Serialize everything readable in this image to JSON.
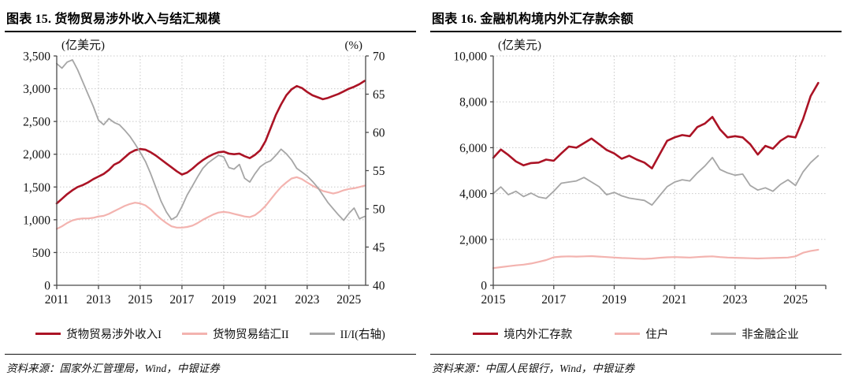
{
  "colors": {
    "dark_red": "#AB1325",
    "pink": "#F3B3AF",
    "gray": "#A6A6A6",
    "axis": "#4a4a4a",
    "grid": "#c9c9c9"
  },
  "chart_data": [
    {
      "type": "line",
      "title": "图表 15. 货物贸易涉外收入与结汇规模",
      "unit_left": "(亿美元)",
      "unit_right": "(%)",
      "x_start": 2011.0,
      "x_step": 0.25,
      "xlim": [
        2011,
        2025.8
      ],
      "x_ticks": [
        2011,
        2013,
        2015,
        2017,
        2019,
        2021,
        2023,
        2025
      ],
      "ylim_left": [
        0,
        3500
      ],
      "y_ticks_left": [
        0,
        500,
        1000,
        1500,
        2000,
        2500,
        3000,
        3500
      ],
      "ylim_right": [
        40,
        70
      ],
      "y_ticks_right": [
        40,
        45,
        50,
        55,
        60,
        65,
        70
      ],
      "grid": "dotted",
      "legend_position": "bottom",
      "series": [
        {
          "name": "货物贸易涉外收入I",
          "axis": "left",
          "color_key": "dark_red",
          "width": 2.6,
          "values": [
            1250,
            1320,
            1390,
            1450,
            1500,
            1530,
            1570,
            1620,
            1660,
            1700,
            1760,
            1840,
            1880,
            1950,
            2020,
            2060,
            2080,
            2070,
            2030,
            1980,
            1920,
            1860,
            1800,
            1740,
            1690,
            1720,
            1780,
            1850,
            1910,
            1960,
            2000,
            2030,
            2040,
            2010,
            2000,
            2010,
            1970,
            1940,
            1990,
            2060,
            2200,
            2400,
            2600,
            2760,
            2900,
            2990,
            3040,
            3010,
            2950,
            2900,
            2870,
            2840,
            2860,
            2890,
            2920,
            2960,
            3000,
            3030,
            3070,
            3120
          ]
        },
        {
          "name": "货物贸易结汇II",
          "axis": "left",
          "color_key": "pink",
          "width": 2.2,
          "values": [
            860,
            900,
            950,
            990,
            1010,
            1020,
            1020,
            1030,
            1050,
            1060,
            1090,
            1130,
            1170,
            1210,
            1240,
            1260,
            1250,
            1220,
            1160,
            1080,
            1010,
            950,
            900,
            880,
            880,
            890,
            910,
            950,
            1000,
            1040,
            1080,
            1110,
            1120,
            1110,
            1090,
            1070,
            1050,
            1040,
            1070,
            1130,
            1210,
            1310,
            1410,
            1500,
            1570,
            1630,
            1650,
            1620,
            1570,
            1520,
            1480,
            1440,
            1420,
            1400,
            1420,
            1450,
            1470,
            1480,
            1500,
            1520
          ]
        },
        {
          "name": "II/I(右轴)",
          "axis": "right",
          "color_key": "gray",
          "width": 1.8,
          "values": [
            69.0,
            68.4,
            69.2,
            69.5,
            68.2,
            66.6,
            65.0,
            63.4,
            61.6,
            61.0,
            61.8,
            61.3,
            61.0,
            60.3,
            59.5,
            58.5,
            57.4,
            56.2,
            54.6,
            52.8,
            51.0,
            49.6,
            48.6,
            49.0,
            50.3,
            51.8,
            53.0,
            54.2,
            55.3,
            56.0,
            56.5,
            57.0,
            56.8,
            55.4,
            55.2,
            55.8,
            54.0,
            53.5,
            54.6,
            55.5,
            56.0,
            56.3,
            57.0,
            57.8,
            57.2,
            56.4,
            55.3,
            54.8,
            54.3,
            53.6,
            52.8,
            51.8,
            50.8,
            50.0,
            49.2,
            48.5,
            49.4,
            50.1,
            48.7,
            49.0
          ]
        }
      ],
      "source": "资料来源：国家外汇管理局，Wind，中银证券"
    },
    {
      "type": "line",
      "title": "图表 16. 金融机构境内外汇存款余额",
      "unit_left": "(亿美元)",
      "x_start": 2015.0,
      "x_step": 0.25,
      "xlim": [
        2015,
        2026
      ],
      "x_ticks": [
        2015,
        2017,
        2019,
        2021,
        2023,
        2025
      ],
      "ylim_left": [
        0,
        10000
      ],
      "y_ticks_left": [
        0,
        2000,
        4000,
        6000,
        8000,
        10000
      ],
      "grid": "dotted",
      "legend_position": "bottom",
      "series": [
        {
          "name": "境内外汇存款",
          "axis": "left",
          "color_key": "dark_red",
          "width": 2.6,
          "values": [
            5560,
            5920,
            5680,
            5400,
            5230,
            5330,
            5350,
            5480,
            5430,
            5750,
            6050,
            6000,
            6200,
            6400,
            6150,
            5900,
            5750,
            5520,
            5650,
            5480,
            5350,
            5100,
            5700,
            6300,
            6450,
            6550,
            6500,
            6900,
            7050,
            7340,
            6800,
            6450,
            6500,
            6450,
            6150,
            5700,
            6080,
            5960,
            6300,
            6500,
            6450,
            7250,
            8250,
            8820
          ]
        },
        {
          "name": "住户",
          "axis": "left",
          "color_key": "pink",
          "width": 2.2,
          "values": [
            750,
            790,
            830,
            870,
            900,
            950,
            1020,
            1100,
            1220,
            1250,
            1260,
            1250,
            1260,
            1270,
            1250,
            1230,
            1210,
            1190,
            1180,
            1160,
            1150,
            1170,
            1200,
            1220,
            1230,
            1220,
            1210,
            1230,
            1250,
            1260,
            1230,
            1210,
            1200,
            1190,
            1180,
            1170,
            1180,
            1190,
            1200,
            1210,
            1260,
            1420,
            1500,
            1550
          ]
        },
        {
          "name": "非金融企业",
          "axis": "left",
          "color_key": "gray",
          "width": 1.8,
          "values": [
            4000,
            4290,
            3950,
            4100,
            3870,
            4020,
            3850,
            3790,
            4100,
            4450,
            4500,
            4550,
            4700,
            4500,
            4300,
            3950,
            4050,
            3900,
            3800,
            3750,
            3700,
            3500,
            3900,
            4300,
            4500,
            4600,
            4550,
            4900,
            5200,
            5570,
            5050,
            4900,
            4800,
            4850,
            4350,
            4150,
            4250,
            4100,
            4400,
            4600,
            4350,
            4950,
            5350,
            5650
          ]
        }
      ],
      "source": "资料来源：中国人民银行，Wind，中银证券"
    }
  ]
}
